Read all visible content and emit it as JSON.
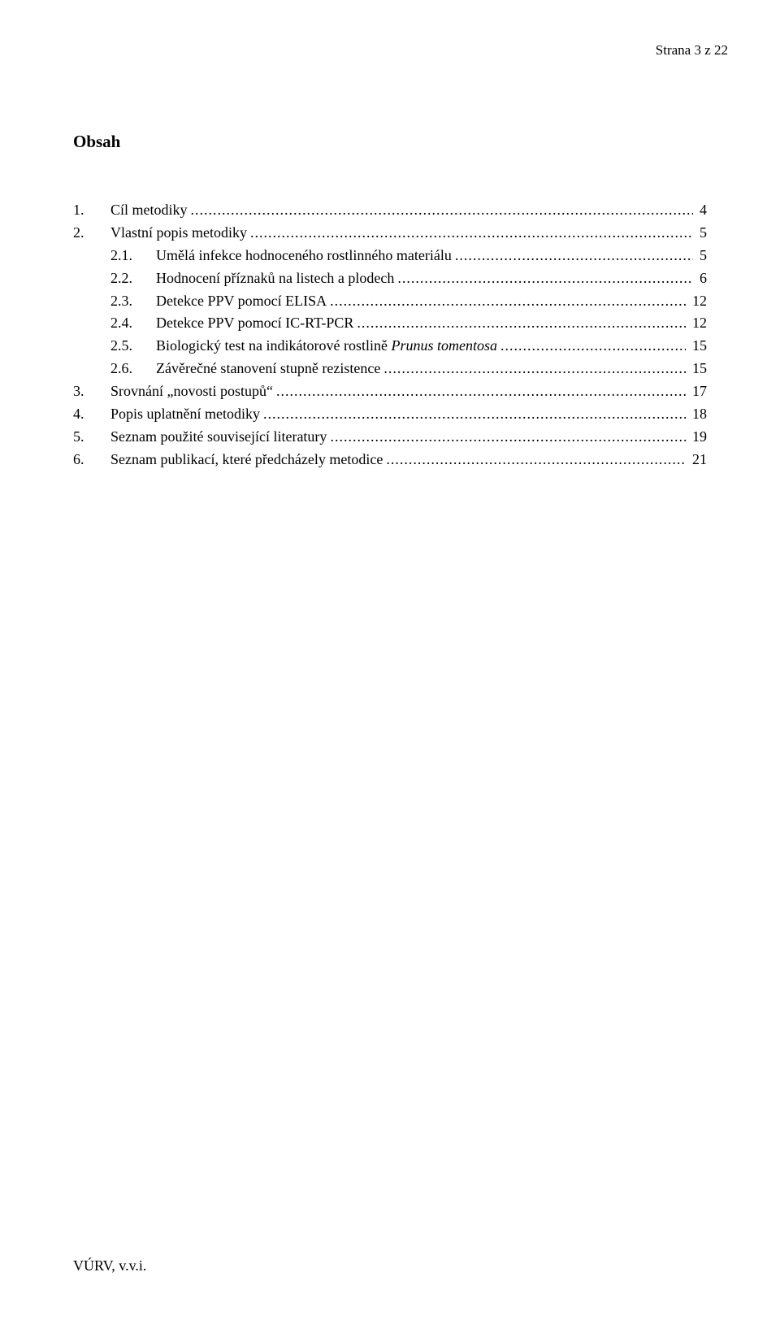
{
  "page_label": "Strana 3 z 22",
  "title": "Obsah",
  "toc": [
    {
      "level": 1,
      "num": "1.",
      "text": "Cíl metodiky",
      "italic": "",
      "page": "4"
    },
    {
      "level": 1,
      "num": "2.",
      "text": "Vlastní popis metodiky",
      "italic": "",
      "page": "5"
    },
    {
      "level": 2,
      "num": "2.1.",
      "text": "Umělá infekce hodnoceného rostlinného materiálu",
      "italic": "",
      "page": "5"
    },
    {
      "level": 2,
      "num": "2.2.",
      "text": "Hodnocení příznaků na listech a plodech",
      "italic": "",
      "page": "6"
    },
    {
      "level": 2,
      "num": "2.3.",
      "text": "Detekce PPV pomocí ELISA",
      "italic": "",
      "page": "12"
    },
    {
      "level": 2,
      "num": "2.4.",
      "text": "Detekce PPV pomocí IC-RT-PCR",
      "italic": "",
      "page": "12"
    },
    {
      "level": 2,
      "num": "2.5.",
      "text": "Biologický test na indikátorové rostlině ",
      "italic": "Prunus tomentosa",
      "page": "15"
    },
    {
      "level": 2,
      "num": "2.6.",
      "text": "Závěrečné stanovení stupně rezistence",
      "italic": "",
      "page": "15"
    },
    {
      "level": 1,
      "num": "3.",
      "text": "Srovnání „novosti postupů“ ",
      "italic": "",
      "page": "17"
    },
    {
      "level": 1,
      "num": "4.",
      "text": "Popis uplatnění metodiky",
      "italic": "",
      "page": "18"
    },
    {
      "level": 1,
      "num": "5.",
      "text": "Seznam použité související literatury",
      "italic": "",
      "page": "19"
    },
    {
      "level": 1,
      "num": "6.",
      "text": "Seznam publikací, které předcházely metodice",
      "italic": "",
      "page": "21"
    }
  ],
  "footer": "VÚRV, v.v.i."
}
